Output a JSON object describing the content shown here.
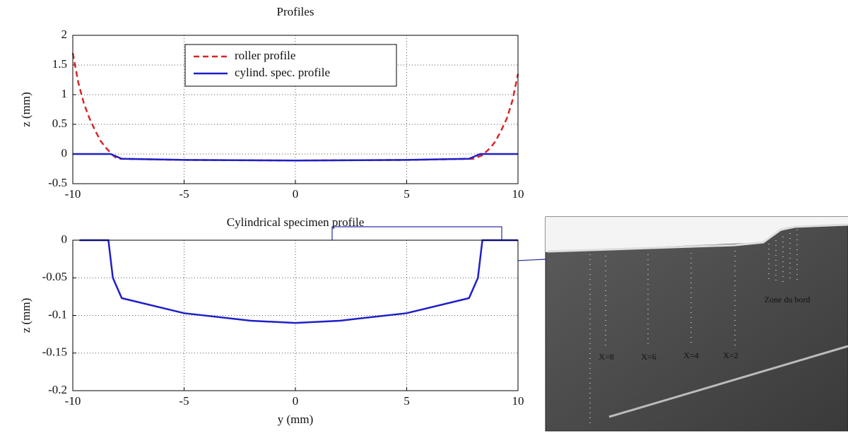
{
  "chart_data": [
    {
      "type": "line",
      "title": "Profiles",
      "ylabel": "z (mm)",
      "xlim": [
        -10,
        10
      ],
      "xticks": [
        -10,
        -5,
        0,
        5,
        10
      ],
      "ylim": [
        -0.5,
        2
      ],
      "yticks": [
        -0.5,
        0,
        0.5,
        1,
        1.5,
        2
      ],
      "grid": true,
      "legend": "top",
      "series": [
        {
          "name": "roller profile",
          "color": "#d62728",
          "dash": true,
          "x": [
            -10,
            -9.75,
            -9.5,
            -9.25,
            -9,
            -8.75,
            -8.5,
            -8.2,
            -8,
            -5,
            0,
            5,
            8,
            8.4,
            8.75,
            9,
            9.25,
            9.5,
            9.75,
            10
          ],
          "values": [
            1.7,
            1.2,
            0.85,
            0.6,
            0.4,
            0.22,
            0.1,
            -0.02,
            -0.08,
            -0.1,
            -0.11,
            -0.1,
            -0.08,
            -0.02,
            0.1,
            0.22,
            0.4,
            0.6,
            0.9,
            1.35
          ]
        },
        {
          "name": "cylind. spec. profile",
          "color": "#1f1fc8",
          "dash": false,
          "x": [
            -10,
            -8.3,
            -7.8,
            -5,
            0,
            5,
            7.8,
            8.3,
            10
          ],
          "values": [
            0,
            0,
            -0.08,
            -0.1,
            -0.11,
            -0.1,
            -0.08,
            0,
            0
          ]
        }
      ]
    },
    {
      "type": "line",
      "title": "Cylindrical specimen profile",
      "ylabel": "z (mm)",
      "xlabel": "y (mm)",
      "xlim": [
        -10,
        10
      ],
      "xticks": [
        -10,
        -5,
        0,
        5,
        10
      ],
      "ylim": [
        -0.2,
        0
      ],
      "yticks": [
        -0.2,
        -0.15,
        -0.1,
        -0.05,
        0
      ],
      "grid": true,
      "series": [
        {
          "name": "cylind. spec. profile",
          "color": "#1f1fc8",
          "dash": false,
          "x": [
            -9.7,
            -8.4,
            -8.2,
            -7.8,
            -5,
            -2,
            0,
            2,
            5,
            7.8,
            8.2,
            8.4,
            10
          ],
          "values": [
            0,
            0,
            -0.05,
            -0.077,
            -0.097,
            -0.107,
            -0.11,
            -0.107,
            -0.097,
            -0.077,
            -0.05,
            0,
            0
          ]
        }
      ]
    }
  ],
  "micrograph": {
    "labels": [
      "X=8",
      "X=6",
      "X=4",
      "X=2",
      "Zone du bord"
    ]
  }
}
